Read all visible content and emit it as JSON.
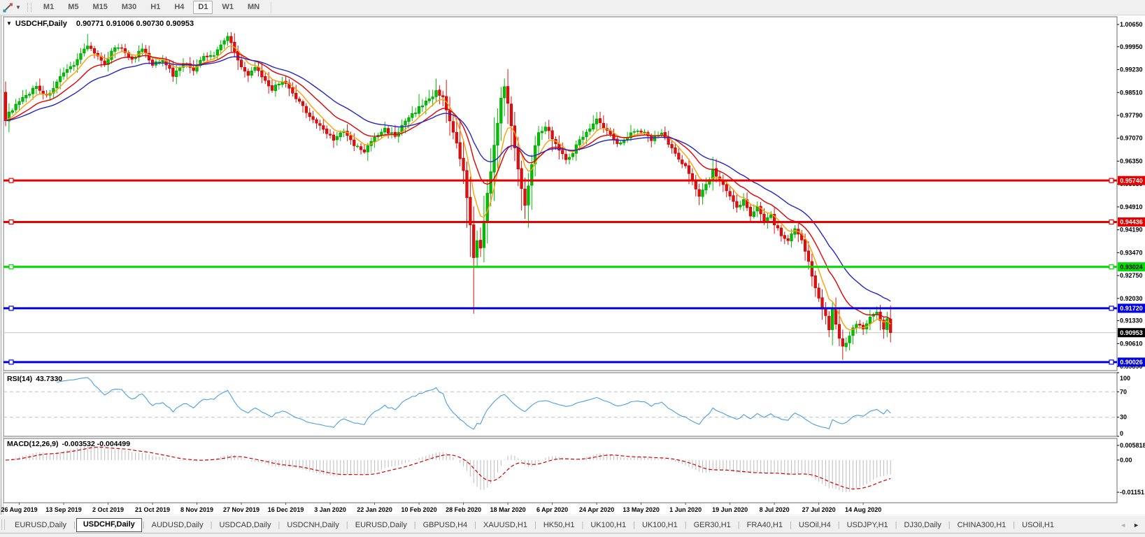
{
  "toolbar": {
    "timeframes": [
      "M1",
      "M5",
      "M15",
      "M30",
      "H1",
      "H4",
      "D1",
      "W1",
      "MN"
    ],
    "active_timeframe": "D1",
    "dropdown_arrow": "▼"
  },
  "chart": {
    "title_marker": "▼",
    "title_symbol": "USDCHF,Daily",
    "title_quote": "0.90771 0.91006 0.90730 0.90953",
    "price_axis_ticks": [
      "1.00650",
      "0.99950",
      "0.99230",
      "0.98510",
      "0.97790",
      "0.97070",
      "0.96350",
      "0.95630",
      "0.94910",
      "0.94190",
      "0.93470",
      "0.92750",
      "0.92030",
      "0.91330",
      "0.90610",
      "0.89890"
    ],
    "date_axis_ticks": [
      "26 Aug 2019",
      "13 Sep 2019",
      "2 Oct 2019",
      "21 Oct 2019",
      "8 Nov 2019",
      "27 Nov 2019",
      "16 Dec 2019",
      "3 Jan 2020",
      "22 Jan 2020",
      "10 Feb 2020",
      "28 Feb 2020",
      "18 Mar 2020",
      "6 Apr 2020",
      "24 Apr 2020",
      "13 May 2020",
      "1 Jun 2020",
      "19 Jun 2020",
      "8 Jul 2020",
      "27 Jul 2020",
      "14 Aug 2020"
    ],
    "hlines": [
      {
        "label": "0.95740",
        "price": 0.9574,
        "color": "#e60000",
        "text_color": "#ffffff"
      },
      {
        "label": "0.94436",
        "price": 0.94436,
        "color": "#e60000",
        "text_color": "#ffffff"
      },
      {
        "label": "0.93024",
        "price": 0.93024,
        "color": "#00dd00",
        "text_color": "#000000"
      },
      {
        "label": "0.91720",
        "price": 0.9172,
        "color": "#0000e0",
        "text_color": "#ffffff"
      },
      {
        "label": "0.90026",
        "price": 0.90026,
        "color": "#0000e0",
        "text_color": "#ffffff"
      }
    ],
    "current_price": {
      "label": "0.90953",
      "price": 0.90953,
      "line_color": "#c4c4c4",
      "badge_bg": "#000000",
      "badge_text": "#ffffff"
    }
  },
  "rsi": {
    "label": "RSI(14)",
    "value": "43.7330",
    "axis_labels": [
      "100",
      "70",
      "30",
      "0"
    ],
    "levels": [
      70,
      30
    ],
    "line_color": "#4aa0e0"
  },
  "macd": {
    "label": "MACD(12,26,9)",
    "values": "-0.003532 -0.004499",
    "axis_max": "0.005818",
    "axis_zero": "0.00",
    "axis_min": "-0.01151",
    "hist_color": "#c2c2c2",
    "signal_color": "#d40000"
  },
  "tabs": {
    "items": [
      {
        "label": "EURUSD,Daily",
        "active": false
      },
      {
        "label": "USDCHF,Daily",
        "active": true
      },
      {
        "label": "AUDUSD,Daily",
        "active": false
      },
      {
        "label": "USDCAD,Daily",
        "active": false
      },
      {
        "label": "USDCNH,Daily",
        "active": false
      },
      {
        "label": "EURUSD,Daily",
        "active": false
      },
      {
        "label": "GBPUSD,H4",
        "active": false
      },
      {
        "label": "XAUUSD,H1",
        "active": false
      },
      {
        "label": "HK50,H1",
        "active": false
      },
      {
        "label": "UK100,H1",
        "active": false
      },
      {
        "label": "UK100,H1",
        "active": false
      },
      {
        "label": "GER30,H1",
        "active": false
      },
      {
        "label": "FRA40,H1",
        "active": false
      },
      {
        "label": "USOil,H4",
        "active": false
      },
      {
        "label": "USDJPY,H1",
        "active": false
      },
      {
        "label": "DJ30,Daily",
        "active": false
      },
      {
        "label": "CHINA300,H1",
        "active": false
      },
      {
        "label": "USOil,H1",
        "active": false
      }
    ],
    "scroll_left": "◄",
    "scroll_right": "►"
  },
  "chart_data": {
    "type": "candlestick",
    "symbol": "USDCHF",
    "timeframe": "Daily",
    "ohlc_display": {
      "open": "0.90771",
      "high": "0.91006",
      "low": "0.90730",
      "close": "0.90953"
    },
    "visible_range": {
      "first_label": "26 Aug 2019",
      "last_label": "14 Aug 2020",
      "price_axis_top": 1.0065,
      "price_axis_bottom": 0.8989
    },
    "num_candles": 260,
    "close_anchors": [
      [
        0,
        0.9768
      ],
      [
        2,
        0.98
      ],
      [
        5,
        0.983
      ],
      [
        9,
        0.9872
      ],
      [
        12,
        0.9838
      ],
      [
        16,
        0.9896
      ],
      [
        20,
        0.9942
      ],
      [
        24,
        1.0002
      ],
      [
        27,
        0.9962
      ],
      [
        29,
        0.9935
      ],
      [
        31,
        0.9986
      ],
      [
        34,
        0.9994
      ],
      [
        37,
        0.9952
      ],
      [
        40,
        0.9988
      ],
      [
        43,
        0.9935
      ],
      [
        46,
        0.9958
      ],
      [
        49,
        0.9905
      ],
      [
        52,
        0.9945
      ],
      [
        55,
        0.9922
      ],
      [
        58,
        0.9962
      ],
      [
        61,
        0.9968
      ],
      [
        63,
        1.0005
      ],
      [
        65,
        1.0028
      ],
      [
        67,
        0.9985
      ],
      [
        69,
        0.993
      ],
      [
        71,
        0.99
      ],
      [
        73,
        0.9935
      ],
      [
        75,
        0.9895
      ],
      [
        78,
        0.986
      ],
      [
        81,
        0.989
      ],
      [
        84,
        0.9845
      ],
      [
        87,
        0.9805
      ],
      [
        90,
        0.9765
      ],
      [
        93,
        0.9735
      ],
      [
        96,
        0.9705
      ],
      [
        99,
        0.9728
      ],
      [
        102,
        0.9685
      ],
      [
        105,
        0.9665
      ],
      [
        108,
        0.971
      ],
      [
        111,
        0.9735
      ],
      [
        114,
        0.9715
      ],
      [
        117,
        0.9758
      ],
      [
        120,
        0.9792
      ],
      [
        123,
        0.9822
      ],
      [
        126,
        0.9852
      ],
      [
        128,
        0.984
      ],
      [
        129,
        0.98
      ],
      [
        130,
        0.976
      ],
      [
        131,
        0.972
      ],
      [
        132,
        0.969
      ],
      [
        133,
        0.964
      ],
      [
        134,
        0.96
      ],
      [
        135,
        0.952
      ],
      [
        136,
        0.943
      ],
      [
        137,
        0.933
      ],
      [
        138,
        0.939
      ],
      [
        139,
        0.936
      ],
      [
        140,
        0.945
      ],
      [
        141,
        0.953
      ],
      [
        142,
        0.96
      ],
      [
        143,
        0.968
      ],
      [
        144,
        0.976
      ],
      [
        145,
        0.983
      ],
      [
        146,
        0.9865
      ],
      [
        147,
        0.982
      ],
      [
        148,
        0.975
      ],
      [
        149,
        0.968
      ],
      [
        150,
        0.961
      ],
      [
        151,
        0.9545
      ],
      [
        152,
        0.95
      ],
      [
        153,
        0.956
      ],
      [
        154,
        0.963
      ],
      [
        155,
        0.969
      ],
      [
        156,
        0.972
      ],
      [
        158,
        0.9745
      ],
      [
        160,
        0.971
      ],
      [
        162,
        0.967
      ],
      [
        164,
        0.964
      ],
      [
        166,
        0.9665
      ],
      [
        168,
        0.97
      ],
      [
        170,
        0.973
      ],
      [
        173,
        0.9765
      ],
      [
        176,
        0.973
      ],
      [
        179,
        0.969
      ],
      [
        182,
        0.9715
      ],
      [
        185,
        0.9735
      ],
      [
        187,
        0.9722
      ],
      [
        189,
        0.9705
      ],
      [
        192,
        0.9725
      ],
      [
        195,
        0.9675
      ],
      [
        197,
        0.964
      ],
      [
        199,
        0.9615
      ],
      [
        201,
        0.9575
      ],
      [
        203,
        0.953
      ],
      [
        205,
        0.956
      ],
      [
        207,
        0.9605
      ],
      [
        209,
        0.9575
      ],
      [
        212,
        0.952
      ],
      [
        214,
        0.9487
      ],
      [
        216,
        0.9512
      ],
      [
        218,
        0.9468
      ],
      [
        220,
        0.9488
      ],
      [
        222,
        0.9448
      ],
      [
        224,
        0.9468
      ],
      [
        225,
        0.944
      ],
      [
        227,
        0.9405
      ],
      [
        229,
        0.9385
      ],
      [
        231,
        0.9428
      ],
      [
        233,
        0.9388
      ],
      [
        235,
        0.9315
      ],
      [
        237,
        0.924
      ],
      [
        238,
        0.92
      ],
      [
        240,
        0.915
      ],
      [
        241,
        0.911
      ],
      [
        242,
        0.9165
      ],
      [
        243,
        0.912
      ],
      [
        244,
        0.908
      ],
      [
        245,
        0.9055
      ],
      [
        246,
        0.9058
      ],
      [
        247,
        0.909
      ],
      [
        249,
        0.9125
      ],
      [
        251,
        0.9105
      ],
      [
        253,
        0.9148
      ],
      [
        255,
        0.916
      ],
      [
        256,
        0.913
      ],
      [
        257,
        0.9105
      ],
      [
        258,
        0.914
      ],
      [
        259,
        0.90953
      ]
    ],
    "wick_overrides": [
      {
        "i": 0,
        "low": 0.9745
      },
      {
        "i": 24,
        "high": 1.0035
      },
      {
        "i": 65,
        "high": 1.004
      },
      {
        "i": 137,
        "low": 0.9155
      },
      {
        "i": 146,
        "high": 0.9895
      },
      {
        "i": 245,
        "low": 0.901
      }
    ],
    "first_open": 0.9852,
    "moving_averages": [
      {
        "name": "fast",
        "period": 7,
        "color": "#ff9f00"
      },
      {
        "name": "medium",
        "period": 16,
        "color": "#e00000"
      },
      {
        "name": "slow",
        "period": 30,
        "color": "#2424c8"
      }
    ],
    "horizontal_levels": [
      0.9574,
      0.94436,
      0.93024,
      0.9172,
      0.90026
    ],
    "indicators": {
      "rsi": {
        "period": 14,
        "last_value": 43.733
      },
      "macd": {
        "fast": 12,
        "slow": 26,
        "signal": 9,
        "last_values": [
          -0.003532,
          -0.004499
        ],
        "hist_max": 0.005818,
        "hist_min": -0.01151
      }
    },
    "colors": {
      "bull": "#00c000",
      "bull_edge": "#009600",
      "bear": "#e01010",
      "bear_edge": "#b40000"
    }
  }
}
